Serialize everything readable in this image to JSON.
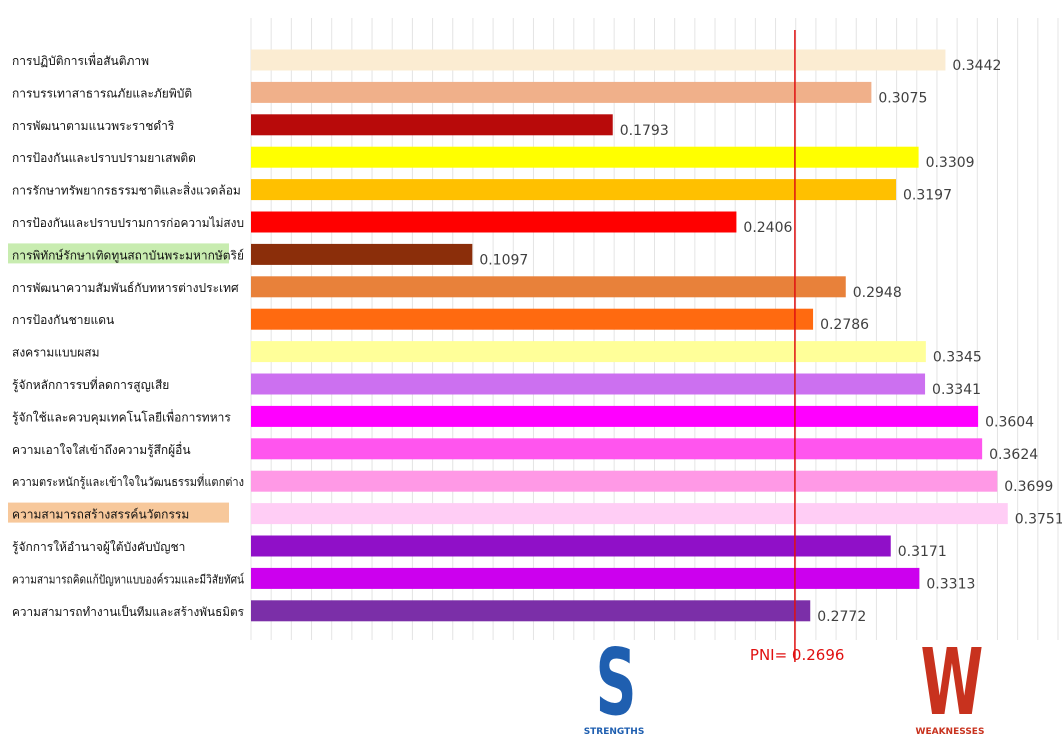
{
  "chart_data": {
    "type": "bar",
    "orientation": "horizontal",
    "grid": true,
    "xlim": [
      0,
      0.4
    ],
    "categories": [
      "การปฏิบัติการเพื่อสันติภาพ",
      "การบรรเทาสาธารณภัยและภัยพิบัติ",
      "การพัฒนาตามแนวพระราชดำริ",
      "การป้องกันและปราบปรามยาเสพติด",
      "การรักษาทรัพยากรธรรมชาติและสิ่งแวดล้อม",
      "การป้องกันและปราบปรามการก่อความไม่สงบ",
      "การพิทักษ์รักษาเทิดทูนสถาบันพระมหากษัตริย์",
      "การพัฒนาความสัมพันธ์กับทหารต่างประเทศ",
      "การป้องกันชายแดน",
      "สงครามแบบผสม",
      "รู้จักหลักการรบที่ลดการสูญเสีย",
      "รู้จักใช้และควบคุมเทคโนโลยีเพื่อการทหาร",
      "ความเอาใจใส่เข้าถึงความรู้สึกผู้อื่น",
      "ความตระหนักรู้และเข้าใจในวัฒนธรรมที่แตกต่าง",
      "ความสามารถสร้างสรรค์นวัตกรรม",
      "รู้จักการให้อำนาจผู้ใต้บังคับบัญชา",
      "ความสามารถคิดแก้ปัญหาแบบองค์รวมและมีวิสัยทัศน์",
      "ความสามารถทำงานเป็นทีมและสร้างพันธมิตร"
    ],
    "values": [
      0.3442,
      0.3075,
      0.1793,
      0.3309,
      0.3197,
      0.2406,
      0.1097,
      0.2948,
      0.2786,
      0.3345,
      0.3341,
      0.3604,
      0.3624,
      0.3699,
      0.3751,
      0.3171,
      0.3313,
      0.2772
    ],
    "value_labels": [
      "0.3442",
      "0.3075",
      "0.1793",
      "0.3309",
      "0.3197",
      "0.2406",
      "0.1097",
      "0.2948",
      "0.2786",
      "0.3345",
      "0.3341",
      "0.3604",
      "0.3624",
      "0.3699",
      "0.3751",
      "0.3171",
      "0.3313",
      "0.2772"
    ],
    "colors": [
      "#fbecd2",
      "#f0b08a",
      "#b80a0a",
      "#ffff00",
      "#ffc000",
      "#ff0000",
      "#8b2e0a",
      "#e8813a",
      "#ff6a10",
      "#ffff99",
      "#cc70f0",
      "#ff00ff",
      "#ff55ee",
      "#ff99e6",
      "#ffcdf5",
      "#9010c8",
      "#cc00ee",
      "#7b2fa8"
    ],
    "highlighted_categories": [
      {
        "index": 6,
        "color": "#c8ecb0"
      },
      {
        "index": 14,
        "color": "#f7c89b"
      }
    ],
    "reference_line": {
      "value": 0.2696,
      "label": "PNI= 0.2696",
      "color": "#e01010"
    },
    "annotations": [
      {
        "letter": "S",
        "caption": "STRENGTHS",
        "color": "#1f5fb0"
      },
      {
        "letter": "W",
        "caption": "WEAKNESSES",
        "color": "#c8321e"
      }
    ]
  }
}
